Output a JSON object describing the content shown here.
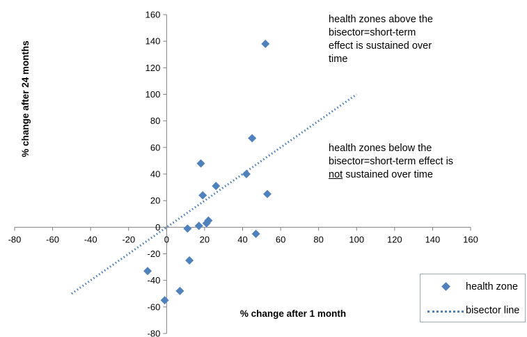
{
  "chart_data": {
    "type": "scatter",
    "xlabel": "% change after 1 month",
    "ylabel": "% change after 24 months",
    "xlim": [
      -80,
      160
    ],
    "ylim": [
      -80,
      160
    ],
    "x_ticks": [
      -80,
      -60,
      -40,
      -20,
      0,
      20,
      40,
      60,
      80,
      100,
      120,
      140,
      160
    ],
    "y_ticks": [
      -80,
      -60,
      -40,
      -20,
      0,
      20,
      40,
      60,
      80,
      100,
      120,
      140,
      160
    ],
    "grid": false,
    "legend_position": "bottom-right",
    "series": [
      {
        "name": "health zone",
        "type": "scatter",
        "marker": "diamond",
        "color": "#4f81bd",
        "points": [
          {
            "x": -1,
            "y": -55
          },
          {
            "x": -10,
            "y": -33
          },
          {
            "x": 7,
            "y": -48
          },
          {
            "x": 12,
            "y": -25
          },
          {
            "x": 11,
            "y": -1
          },
          {
            "x": 17,
            "y": 1
          },
          {
            "x": 21,
            "y": 3
          },
          {
            "x": 22,
            "y": 5
          },
          {
            "x": 19,
            "y": 24
          },
          {
            "x": 18,
            "y": 48
          },
          {
            "x": 26,
            "y": 31
          },
          {
            "x": 42,
            "y": 40
          },
          {
            "x": 45,
            "y": 67
          },
          {
            "x": 47,
            "y": -5
          },
          {
            "x": 52,
            "y": 138
          },
          {
            "x": 53,
            "y": 25
          }
        ]
      },
      {
        "name": "bisector line",
        "type": "line",
        "style": "dotted",
        "color": "#4f81bd",
        "points": [
          {
            "x": -50,
            "y": -50
          },
          {
            "x": 100,
            "y": 100
          }
        ]
      }
    ],
    "annotations": [
      {
        "lines": [
          "health zones above the",
          "bisector=short-term",
          "effect is sustained over",
          "time"
        ]
      },
      {
        "lines": [
          "health zones below the",
          "bisector=short-term effect is"
        ],
        "underlined_word": "not",
        "last_line_rest": " sustained over time"
      }
    ]
  }
}
